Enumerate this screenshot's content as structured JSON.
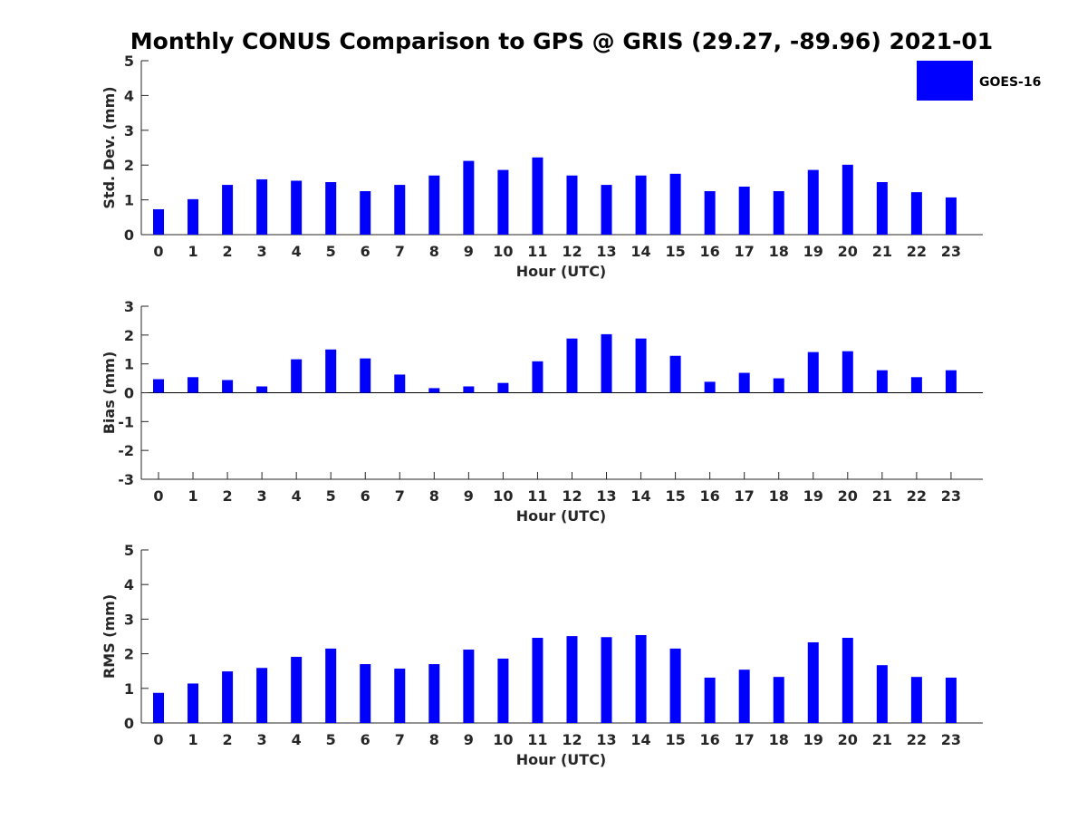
{
  "figure": {
    "title": "Monthly CONUS Comparison to GPS @ GRIS (29.27, -89.96) 2021-01"
  },
  "legend": {
    "label": "GOES-16",
    "color": "#0000ff",
    "placement": "top-right"
  },
  "chart_data": [
    {
      "type": "bar",
      "ylabel": "Std. Dev. (mm)",
      "xlabel": "Hour (UTC)",
      "ylim": [
        0,
        5
      ],
      "yticks": [
        0,
        1,
        2,
        3,
        4,
        5
      ],
      "categories": [
        "0",
        "1",
        "2",
        "3",
        "4",
        "5",
        "6",
        "7",
        "8",
        "9",
        "10",
        "11",
        "12",
        "13",
        "14",
        "15",
        "16",
        "17",
        "18",
        "19",
        "20",
        "21",
        "22",
        "23"
      ],
      "series": [
        {
          "name": "GOES-16",
          "color": "#0000ff",
          "values": [
            0.73,
            1.02,
            1.43,
            1.59,
            1.55,
            1.51,
            1.25,
            1.43,
            1.7,
            2.12,
            1.86,
            2.22,
            1.7,
            1.43,
            1.7,
            1.75,
            1.25,
            1.38,
            1.25,
            1.86,
            2.01,
            1.51,
            1.22,
            1.07
          ]
        }
      ],
      "grid": false
    },
    {
      "type": "bar",
      "ylabel": "Bias (mm)",
      "xlabel": "Hour (UTC)",
      "ylim": [
        -3,
        3
      ],
      "yticks": [
        -3,
        -2,
        -1,
        0,
        1,
        2,
        3
      ],
      "categories": [
        "0",
        "1",
        "2",
        "3",
        "4",
        "5",
        "6",
        "7",
        "8",
        "9",
        "10",
        "11",
        "12",
        "13",
        "14",
        "15",
        "16",
        "17",
        "18",
        "19",
        "20",
        "21",
        "22",
        "23"
      ],
      "series": [
        {
          "name": "GOES-16",
          "color": "#0000ff",
          "values": [
            0.47,
            0.54,
            0.44,
            0.22,
            1.16,
            1.5,
            1.19,
            0.63,
            0.16,
            0.22,
            0.34,
            1.09,
            1.88,
            2.03,
            1.88,
            1.28,
            0.38,
            0.69,
            0.5,
            1.41,
            1.44,
            0.78,
            0.54,
            0.78
          ]
        }
      ],
      "grid": false
    },
    {
      "type": "bar",
      "ylabel": "RMS (mm)",
      "xlabel": "Hour (UTC)",
      "ylim": [
        0,
        5
      ],
      "yticks": [
        0,
        1,
        2,
        3,
        4,
        5
      ],
      "categories": [
        "0",
        "1",
        "2",
        "3",
        "4",
        "5",
        "6",
        "7",
        "8",
        "9",
        "10",
        "11",
        "12",
        "13",
        "14",
        "15",
        "16",
        "17",
        "18",
        "19",
        "20",
        "21",
        "22",
        "23"
      ],
      "series": [
        {
          "name": "GOES-16",
          "color": "#0000ff",
          "values": [
            0.87,
            1.14,
            1.49,
            1.59,
            1.91,
            2.15,
            1.7,
            1.57,
            1.7,
            2.12,
            1.86,
            2.46,
            2.51,
            2.48,
            2.54,
            2.15,
            1.31,
            1.54,
            1.33,
            2.33,
            2.46,
            1.67,
            1.33,
            1.31
          ]
        }
      ],
      "grid": false
    }
  ]
}
